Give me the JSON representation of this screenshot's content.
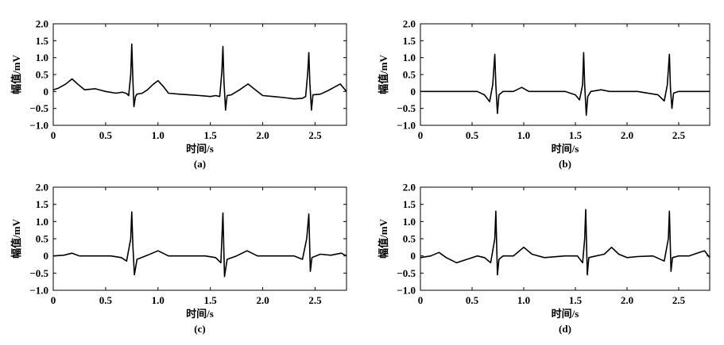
{
  "chart_data": [
    {
      "type": "line",
      "panel_label": "(a)",
      "xlabel": "时间/s",
      "ylabel": "幅值/mV",
      "xlim": [
        0,
        2.8
      ],
      "ylim": [
        -1.0,
        2.0
      ],
      "xticks": [
        "0",
        "0.5",
        "1.0",
        "1.5",
        "2.0",
        "2.5"
      ],
      "xtick_values": [
        0,
        0.5,
        1.0,
        1.5,
        2.0,
        2.5
      ],
      "yticks": [
        "−1.0",
        "−0.5",
        "0",
        "0.5",
        "1.0",
        "1.5",
        "2.0"
      ],
      "ytick_values": [
        -1.0,
        -0.5,
        0,
        0.5,
        1.0,
        1.5,
        2.0
      ],
      "grid": false,
      "series": [
        {
          "color": "#000000",
          "x": [
            0,
            0.05,
            0.12,
            0.18,
            0.24,
            0.3,
            0.4,
            0.5,
            0.6,
            0.66,
            0.7,
            0.72,
            0.74,
            0.75,
            0.76,
            0.77,
            0.785,
            0.8,
            0.85,
            0.9,
            0.95,
            1.0,
            1.05,
            1.1,
            1.2,
            1.3,
            1.4,
            1.5,
            1.55,
            1.59,
            1.61,
            1.62,
            1.63,
            1.645,
            1.66,
            1.7,
            1.78,
            1.86,
            1.93,
            2.0,
            2.1,
            2.2,
            2.3,
            2.38,
            2.41,
            2.43,
            2.44,
            2.45,
            2.465,
            2.48,
            2.55,
            2.62,
            2.68,
            2.74,
            2.8
          ],
          "y": [
            0.05,
            0.1,
            0.22,
            0.37,
            0.2,
            0.05,
            0.08,
            0.0,
            -0.05,
            -0.02,
            -0.06,
            -0.12,
            0.5,
            1.4,
            0.35,
            -0.45,
            -0.15,
            -0.08,
            -0.05,
            0.05,
            0.2,
            0.32,
            0.15,
            -0.05,
            -0.08,
            -0.1,
            -0.12,
            -0.15,
            -0.12,
            -0.15,
            0.6,
            1.33,
            0.3,
            -0.55,
            -0.12,
            -0.1,
            0.05,
            0.22,
            0.05,
            -0.12,
            -0.15,
            -0.18,
            -0.22,
            -0.2,
            -0.15,
            0.55,
            1.15,
            0.25,
            -0.55,
            -0.1,
            -0.08,
            0.02,
            0.12,
            0.22,
            0.0
          ]
        }
      ]
    },
    {
      "type": "line",
      "panel_label": "(b)",
      "xlabel": "时间/s",
      "ylabel": "幅值/mV",
      "xlim": [
        0,
        2.8
      ],
      "ylim": [
        -1.0,
        2.0
      ],
      "xticks": [
        "0",
        "0.5",
        "1.0",
        "1.5",
        "2.0",
        "2.5"
      ],
      "xtick_values": [
        0,
        0.5,
        1.0,
        1.5,
        2.0,
        2.5
      ],
      "yticks": [
        "−1.0",
        "−0.5",
        "0",
        "0.5",
        "1.0",
        "1.5",
        "2.0"
      ],
      "ytick_values": [
        -1.0,
        -0.5,
        0,
        0.5,
        1.0,
        1.5,
        2.0
      ],
      "grid": false,
      "series": [
        {
          "color": "#000000",
          "x": [
            0,
            0.2,
            0.4,
            0.55,
            0.62,
            0.67,
            0.7,
            0.72,
            0.73,
            0.745,
            0.76,
            0.8,
            0.9,
            0.98,
            1.05,
            1.2,
            1.4,
            1.5,
            1.54,
            1.57,
            1.58,
            1.59,
            1.605,
            1.62,
            1.65,
            1.75,
            1.83,
            1.9,
            2.1,
            2.3,
            2.36,
            2.39,
            2.41,
            2.42,
            2.435,
            2.45,
            2.5,
            2.6,
            2.7,
            2.8
          ],
          "y": [
            0.0,
            0.0,
            0.0,
            0.0,
            -0.1,
            -0.3,
            0.2,
            1.1,
            0.2,
            -0.65,
            -0.1,
            0.0,
            0.0,
            0.12,
            0.0,
            0.0,
            0.0,
            -0.1,
            -0.25,
            0.2,
            1.15,
            0.2,
            -0.7,
            -0.15,
            0.0,
            0.05,
            0.0,
            0.0,
            0.0,
            -0.1,
            -0.28,
            0.2,
            1.1,
            0.1,
            -0.5,
            -0.05,
            0.0,
            0.0,
            0.0,
            0.0
          ]
        }
      ]
    },
    {
      "type": "line",
      "panel_label": "(c)",
      "xlabel": "时间/s",
      "ylabel": "幅值/mV",
      "xlim": [
        0,
        2.8
      ],
      "ylim": [
        -1.0,
        2.0
      ],
      "xticks": [
        "0",
        "0.5",
        "1.0",
        "1.5",
        "2.0",
        "2.5"
      ],
      "xtick_values": [
        0,
        0.5,
        1.0,
        1.5,
        2.0,
        2.5
      ],
      "yticks": [
        "−1.0",
        "−0.5",
        "0",
        "0.5",
        "1.0",
        "1.5",
        "2.0"
      ],
      "ytick_values": [
        -1.0,
        -0.5,
        0,
        0.5,
        1.0,
        1.5,
        2.0
      ],
      "grid": false,
      "series": [
        {
          "color": "#000000",
          "x": [
            0,
            0.1,
            0.18,
            0.25,
            0.4,
            0.55,
            0.65,
            0.7,
            0.74,
            0.75,
            0.76,
            0.775,
            0.8,
            0.9,
            1.0,
            1.1,
            1.25,
            1.45,
            1.55,
            1.6,
            1.61,
            1.62,
            1.635,
            1.66,
            1.75,
            1.85,
            1.95,
            2.1,
            2.3,
            2.38,
            2.42,
            2.44,
            2.455,
            2.47,
            2.55,
            2.65,
            2.75,
            2.8
          ],
          "y": [
            0.0,
            0.02,
            0.08,
            0.0,
            0.0,
            0.0,
            -0.05,
            -0.15,
            0.5,
            1.28,
            0.3,
            -0.55,
            -0.1,
            0.02,
            0.15,
            0.0,
            0.0,
            0.0,
            -0.05,
            -0.2,
            0.5,
            1.25,
            -0.6,
            -0.1,
            0.0,
            0.15,
            0.0,
            0.0,
            0.0,
            -0.1,
            0.5,
            1.22,
            -0.45,
            -0.05,
            0.05,
            0.02,
            0.08,
            0.0
          ]
        }
      ]
    },
    {
      "type": "line",
      "panel_label": "(d)",
      "xlabel": "时间/s",
      "ylabel": "幅值/mV",
      "xlim": [
        0,
        2.8
      ],
      "ylim": [
        -1.0,
        2.0
      ],
      "xticks": [
        "0",
        "0.5",
        "1.0",
        "1.5",
        "2.0",
        "2.5"
      ],
      "xtick_values": [
        0,
        0.5,
        1.0,
        1.5,
        2.0,
        2.5
      ],
      "yticks": [
        "−1.0",
        "−0.5",
        "0",
        "0.5",
        "1.0",
        "1.5",
        "2.0"
      ],
      "ytick_values": [
        -1.0,
        -0.5,
        0,
        0.5,
        1.0,
        1.5,
        2.0
      ],
      "grid": false,
      "series": [
        {
          "color": "#000000",
          "x": [
            0,
            0.1,
            0.18,
            0.25,
            0.35,
            0.45,
            0.55,
            0.62,
            0.68,
            0.72,
            0.73,
            0.745,
            0.76,
            0.8,
            0.9,
            1.0,
            1.08,
            1.2,
            1.4,
            1.52,
            1.57,
            1.59,
            1.6,
            1.615,
            1.63,
            1.7,
            1.78,
            1.85,
            1.92,
            2.0,
            2.1,
            2.25,
            2.36,
            2.4,
            2.41,
            2.425,
            2.44,
            2.5,
            2.6,
            2.7,
            2.75,
            2.8
          ],
          "y": [
            -0.05,
            0.0,
            0.1,
            -0.05,
            -0.2,
            -0.1,
            0.0,
            -0.05,
            -0.2,
            0.5,
            1.3,
            -0.55,
            -0.1,
            0.0,
            0.0,
            0.25,
            0.05,
            -0.05,
            0.0,
            0.0,
            -0.2,
            0.5,
            1.35,
            -0.55,
            -0.05,
            0.0,
            0.05,
            0.25,
            0.05,
            -0.05,
            -0.02,
            0.0,
            -0.15,
            0.5,
            1.3,
            -0.45,
            -0.05,
            0.0,
            0.0,
            0.1,
            0.15,
            -0.05
          ]
        }
      ]
    }
  ]
}
